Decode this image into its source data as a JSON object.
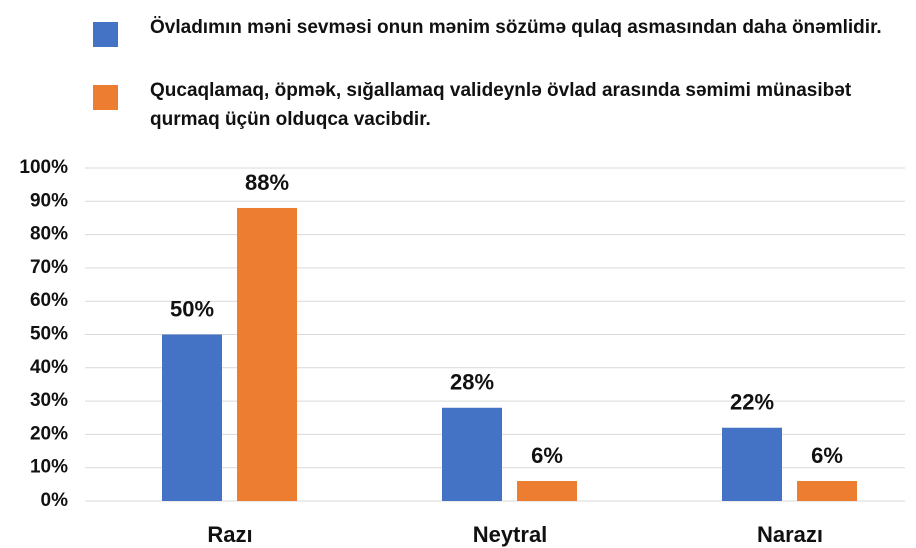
{
  "chart_data": {
    "type": "bar",
    "categories": [
      "Razı",
      "Neytral",
      "Narazı"
    ],
    "series": [
      {
        "name": "Övladımın məni sevməsi onun mənim sözümə qulaq asmasından daha önəmlidir.",
        "color": "#4472c4",
        "values": [
          50,
          28,
          22
        ],
        "value_labels": [
          "50%",
          "28%",
          "22%"
        ]
      },
      {
        "name": "Qucaqlamaq, öpmək, sığallamaq valideynlə övlad arasında səmimi münasibət qurmaq üçün olduqca vacibdir.",
        "color": "#ed7d31",
        "values": [
          88,
          6,
          6
        ],
        "value_labels": [
          "88%",
          "6%",
          "6%"
        ]
      }
    ],
    "ylim": [
      0,
      100
    ],
    "yticks": [
      {
        "value": 0,
        "label": "0%"
      },
      {
        "value": 10,
        "label": "10%"
      },
      {
        "value": 20,
        "label": "20%"
      },
      {
        "value": 30,
        "label": "30%"
      },
      {
        "value": 40,
        "label": "40%"
      },
      {
        "value": 50,
        "label": "50%"
      },
      {
        "value": 60,
        "label": "60%"
      },
      {
        "value": 70,
        "label": "70%"
      },
      {
        "value": 80,
        "label": "80%"
      },
      {
        "value": 90,
        "label": "90%"
      },
      {
        "value": 100,
        "label": "100%"
      }
    ],
    "grid": true,
    "legend": "top"
  }
}
